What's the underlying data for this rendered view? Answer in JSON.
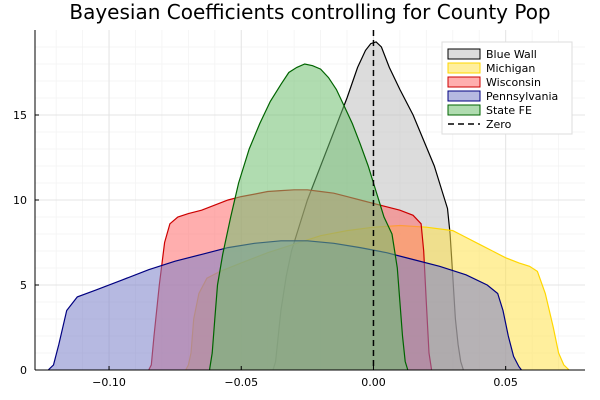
{
  "chart_data": {
    "type": "area",
    "title": "Bayesian Coefficients controlling for County Pop",
    "xlabel": "",
    "ylabel": "",
    "xlim": [
      -0.128,
      0.08
    ],
    "ylim": [
      0,
      20
    ],
    "xticks": [
      -0.1,
      -0.05,
      0.0,
      0.05
    ],
    "xtick_labels": [
      "−0.10",
      "−0.05",
      "0.00",
      "0.05"
    ],
    "yticks": [
      0,
      5,
      10,
      15
    ],
    "ytick_labels": [
      "0",
      "5",
      "10",
      "15"
    ],
    "grid": true,
    "legend_position": "top-right",
    "reference_line": {
      "x": 0.0,
      "label": "Zero",
      "style": "dashed",
      "color": "#000000"
    },
    "series": [
      {
        "name": "Blue Wall",
        "fill": "#bfbfbf",
        "stroke": "#000000",
        "points": [
          [
            -0.038,
            0
          ],
          [
            -0.037,
            0.5
          ],
          [
            -0.035,
            3.5
          ],
          [
            -0.033,
            5.5
          ],
          [
            -0.031,
            7
          ],
          [
            -0.028,
            8.5
          ],
          [
            -0.025,
            10
          ],
          [
            -0.02,
            12
          ],
          [
            -0.015,
            14
          ],
          [
            -0.01,
            16
          ],
          [
            -0.006,
            17.8
          ],
          [
            -0.003,
            18.8
          ],
          [
            -0.001,
            19.2
          ],
          [
            0.001,
            19.3
          ],
          [
            0.003,
            19.0
          ],
          [
            0.006,
            17.8
          ],
          [
            0.01,
            16.5
          ],
          [
            0.015,
            15
          ],
          [
            0.019,
            13.5
          ],
          [
            0.023,
            12
          ],
          [
            0.026,
            10.5
          ],
          [
            0.028,
            9.5
          ],
          [
            0.029,
            8.0
          ],
          [
            0.03,
            5.5
          ],
          [
            0.031,
            3
          ],
          [
            0.032,
            1.5
          ],
          [
            0.033,
            0.5
          ],
          [
            0.034,
            0
          ]
        ]
      },
      {
        "name": "Michigan",
        "fill": "#ffe14d",
        "stroke": "#ffd700",
        "points": [
          [
            -0.071,
            0
          ],
          [
            -0.07,
            0.3
          ],
          [
            -0.069,
            1
          ],
          [
            -0.068,
            3
          ],
          [
            -0.066,
            4.5
          ],
          [
            -0.063,
            5.4
          ],
          [
            -0.058,
            5.8
          ],
          [
            -0.05,
            6.3
          ],
          [
            -0.04,
            6.9
          ],
          [
            -0.03,
            7.4
          ],
          [
            -0.02,
            7.9
          ],
          [
            -0.01,
            8.2
          ],
          [
            0.0,
            8.4
          ],
          [
            0.01,
            8.5
          ],
          [
            0.02,
            8.4
          ],
          [
            0.03,
            8.2
          ],
          [
            0.035,
            7.8
          ],
          [
            0.04,
            7.4
          ],
          [
            0.045,
            7.0
          ],
          [
            0.05,
            6.6
          ],
          [
            0.055,
            6.3
          ],
          [
            0.059,
            6.1
          ],
          [
            0.062,
            5.8
          ],
          [
            0.065,
            4.5
          ],
          [
            0.068,
            2.5
          ],
          [
            0.07,
            1
          ],
          [
            0.072,
            0.3
          ],
          [
            0.074,
            0
          ]
        ]
      },
      {
        "name": "Wisconsin",
        "fill": "#ff6b6b",
        "stroke": "#cc0000",
        "points": [
          [
            -0.085,
            0
          ],
          [
            -0.084,
            0.3
          ],
          [
            -0.083,
            2
          ],
          [
            -0.081,
            5
          ],
          [
            -0.079,
            7.5
          ],
          [
            -0.077,
            8.6
          ],
          [
            -0.074,
            9.0
          ],
          [
            -0.07,
            9.2
          ],
          [
            -0.065,
            9.4
          ],
          [
            -0.06,
            9.7
          ],
          [
            -0.055,
            10.0
          ],
          [
            -0.05,
            10.2
          ],
          [
            -0.045,
            10.35
          ],
          [
            -0.04,
            10.5
          ],
          [
            -0.035,
            10.55
          ],
          [
            -0.03,
            10.6
          ],
          [
            -0.025,
            10.6
          ],
          [
            -0.02,
            10.5
          ],
          [
            -0.015,
            10.4
          ],
          [
            -0.01,
            10.2
          ],
          [
            -0.005,
            10.0
          ],
          [
            0.0,
            9.8
          ],
          [
            0.005,
            9.6
          ],
          [
            0.01,
            9.4
          ],
          [
            0.015,
            9.1
          ],
          [
            0.018,
            8.6
          ],
          [
            0.019,
            7
          ],
          [
            0.02,
            4
          ],
          [
            0.021,
            1
          ],
          [
            0.022,
            0
          ]
        ]
      },
      {
        "name": "Pennsylvania",
        "fill": "#7a80c8",
        "stroke": "#000080",
        "points": [
          [
            -0.123,
            0
          ],
          [
            -0.121,
            0.3
          ],
          [
            -0.119,
            1.5
          ],
          [
            -0.116,
            3.5
          ],
          [
            -0.112,
            4.3
          ],
          [
            -0.105,
            4.7
          ],
          [
            -0.095,
            5.3
          ],
          [
            -0.085,
            5.9
          ],
          [
            -0.075,
            6.4
          ],
          [
            -0.065,
            6.8
          ],
          [
            -0.055,
            7.2
          ],
          [
            -0.045,
            7.45
          ],
          [
            -0.035,
            7.6
          ],
          [
            -0.025,
            7.6
          ],
          [
            -0.015,
            7.45
          ],
          [
            -0.005,
            7.2
          ],
          [
            0.005,
            6.9
          ],
          [
            0.015,
            6.5
          ],
          [
            0.025,
            6.1
          ],
          [
            0.035,
            5.6
          ],
          [
            0.043,
            5.0
          ],
          [
            0.047,
            4.5
          ],
          [
            0.049,
            3.5
          ],
          [
            0.051,
            2
          ],
          [
            0.053,
            0.8
          ],
          [
            0.055,
            0.2
          ],
          [
            0.056,
            0
          ]
        ]
      },
      {
        "name": "State FE",
        "fill": "#70c070",
        "stroke": "#006400",
        "points": [
          [
            -0.062,
            0
          ],
          [
            -0.061,
            1
          ],
          [
            -0.06,
            3
          ],
          [
            -0.059,
            5
          ],
          [
            -0.057,
            6.8
          ],
          [
            -0.054,
            9
          ],
          [
            -0.051,
            11
          ],
          [
            -0.047,
            13
          ],
          [
            -0.043,
            14.5
          ],
          [
            -0.039,
            15.8
          ],
          [
            -0.035,
            16.8
          ],
          [
            -0.032,
            17.5
          ],
          [
            -0.029,
            17.8
          ],
          [
            -0.026,
            18.0
          ],
          [
            -0.023,
            17.9
          ],
          [
            -0.02,
            17.7
          ],
          [
            -0.017,
            17.2
          ],
          [
            -0.014,
            16.5
          ],
          [
            -0.011,
            15.5
          ],
          [
            -0.008,
            14.5
          ],
          [
            -0.005,
            13.3
          ],
          [
            -0.002,
            12
          ],
          [
            0.001,
            10.5
          ],
          [
            0.004,
            9
          ],
          [
            0.007,
            8
          ],
          [
            0.009,
            6
          ],
          [
            0.01,
            4
          ],
          [
            0.011,
            2
          ],
          [
            0.012,
            0.5
          ],
          [
            0.013,
            0
          ]
        ]
      }
    ]
  }
}
